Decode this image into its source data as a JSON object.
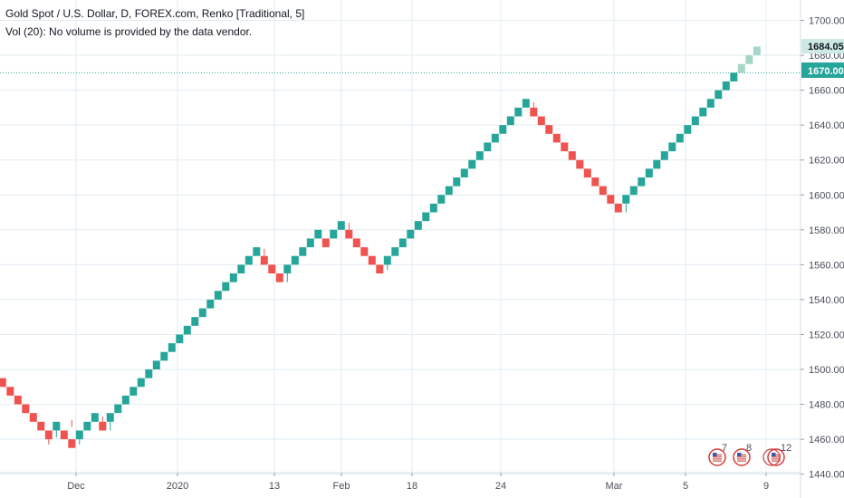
{
  "header": {
    "symbol_line": "Gold Spot / U.S. Dollar, D, FOREX.com, Renko [Traditional, 5]",
    "volume_line": "Vol (20): No volume is provided by the data vendor."
  },
  "colors": {
    "up": "#26a69a",
    "down": "#ef5350",
    "projected": "#a5d6c8",
    "grid": "#e1ecf2",
    "price_line": "#26a69a",
    "last_price_tag": "#26a69a",
    "projected_tag": "#cce9e3"
  },
  "price_tags": {
    "projected": "1684.05",
    "last": "1670.00"
  },
  "event_markers": [
    {
      "icon": "us-flag-earnings-icon",
      "count": "7"
    },
    {
      "icon": "us-flag-earnings-icon",
      "count": "8"
    },
    {
      "icon": "us-flag-earnings-icon",
      "count": "12"
    }
  ],
  "chart_data": {
    "type": "renko",
    "box_size": 5,
    "y_ticks": [
      "1700.00",
      "1680.00",
      "1660.00",
      "1640.00",
      "1620.00",
      "1600.00",
      "1580.00",
      "1560.00",
      "1540.00",
      "1520.00",
      "1500.00",
      "1480.00",
      "1460.00",
      "1440.00"
    ],
    "x_ticks": [
      "Dec",
      "2020",
      "13",
      "Feb",
      "18",
      "24",
      "Mar",
      "5",
      "9"
    ],
    "ylim": [
      1435,
      1710
    ],
    "bricks": [
      {
        "low": 1490,
        "high": 1495,
        "dir": "down"
      },
      {
        "low": 1485,
        "high": 1490,
        "dir": "down"
      },
      {
        "low": 1480,
        "high": 1485,
        "dir": "down"
      },
      {
        "low": 1475,
        "high": 1480,
        "dir": "down"
      },
      {
        "low": 1470,
        "high": 1475,
        "dir": "down"
      },
      {
        "low": 1465,
        "high": 1470,
        "dir": "down"
      },
      {
        "low": 1460,
        "high": 1465,
        "dir": "down"
      },
      {
        "low": 1465,
        "high": 1470,
        "dir": "up"
      },
      {
        "low": 1460,
        "high": 1465,
        "dir": "down"
      },
      {
        "low": 1455,
        "high": 1460,
        "dir": "down"
      },
      {
        "low": 1460,
        "high": 1465,
        "dir": "up"
      },
      {
        "low": 1465,
        "high": 1470,
        "dir": "up"
      },
      {
        "low": 1470,
        "high": 1475,
        "dir": "up"
      },
      {
        "low": 1465,
        "high": 1470,
        "dir": "down"
      },
      {
        "low": 1470,
        "high": 1475,
        "dir": "up"
      },
      {
        "low": 1475,
        "high": 1480,
        "dir": "up"
      },
      {
        "low": 1480,
        "high": 1485,
        "dir": "up"
      },
      {
        "low": 1485,
        "high": 1490,
        "dir": "up"
      },
      {
        "low": 1490,
        "high": 1495,
        "dir": "up"
      },
      {
        "low": 1495,
        "high": 1500,
        "dir": "up"
      },
      {
        "low": 1500,
        "high": 1505,
        "dir": "up"
      },
      {
        "low": 1505,
        "high": 1510,
        "dir": "up"
      },
      {
        "low": 1510,
        "high": 1515,
        "dir": "up"
      },
      {
        "low": 1515,
        "high": 1520,
        "dir": "up"
      },
      {
        "low": 1520,
        "high": 1525,
        "dir": "up"
      },
      {
        "low": 1525,
        "high": 1530,
        "dir": "up"
      },
      {
        "low": 1530,
        "high": 1535,
        "dir": "up"
      },
      {
        "low": 1535,
        "high": 1540,
        "dir": "up"
      },
      {
        "low": 1540,
        "high": 1545,
        "dir": "up"
      },
      {
        "low": 1545,
        "high": 1550,
        "dir": "up"
      },
      {
        "low": 1550,
        "high": 1555,
        "dir": "up"
      },
      {
        "low": 1555,
        "high": 1560,
        "dir": "up"
      },
      {
        "low": 1560,
        "high": 1565,
        "dir": "up"
      },
      {
        "low": 1565,
        "high": 1570,
        "dir": "up"
      },
      {
        "low": 1560,
        "high": 1565,
        "dir": "down"
      },
      {
        "low": 1555,
        "high": 1560,
        "dir": "down"
      },
      {
        "low": 1550,
        "high": 1555,
        "dir": "down"
      },
      {
        "low": 1555,
        "high": 1560,
        "dir": "up"
      },
      {
        "low": 1560,
        "high": 1565,
        "dir": "up"
      },
      {
        "low": 1565,
        "high": 1570,
        "dir": "up"
      },
      {
        "low": 1570,
        "high": 1575,
        "dir": "up"
      },
      {
        "low": 1575,
        "high": 1580,
        "dir": "up"
      },
      {
        "low": 1570,
        "high": 1575,
        "dir": "down"
      },
      {
        "low": 1575,
        "high": 1580,
        "dir": "up"
      },
      {
        "low": 1580,
        "high": 1585,
        "dir": "up"
      },
      {
        "low": 1575,
        "high": 1580,
        "dir": "down"
      },
      {
        "low": 1570,
        "high": 1575,
        "dir": "down"
      },
      {
        "low": 1565,
        "high": 1570,
        "dir": "down"
      },
      {
        "low": 1560,
        "high": 1565,
        "dir": "down"
      },
      {
        "low": 1555,
        "high": 1560,
        "dir": "down"
      },
      {
        "low": 1560,
        "high": 1565,
        "dir": "up"
      },
      {
        "low": 1565,
        "high": 1570,
        "dir": "up"
      },
      {
        "low": 1570,
        "high": 1575,
        "dir": "up"
      },
      {
        "low": 1575,
        "high": 1580,
        "dir": "up"
      },
      {
        "low": 1580,
        "high": 1585,
        "dir": "up"
      },
      {
        "low": 1585,
        "high": 1590,
        "dir": "up"
      },
      {
        "low": 1590,
        "high": 1595,
        "dir": "up"
      },
      {
        "low": 1595,
        "high": 1600,
        "dir": "up"
      },
      {
        "low": 1600,
        "high": 1605,
        "dir": "up"
      },
      {
        "low": 1605,
        "high": 1610,
        "dir": "up"
      },
      {
        "low": 1610,
        "high": 1615,
        "dir": "up"
      },
      {
        "low": 1615,
        "high": 1620,
        "dir": "up"
      },
      {
        "low": 1620,
        "high": 1625,
        "dir": "up"
      },
      {
        "low": 1625,
        "high": 1630,
        "dir": "up"
      },
      {
        "low": 1630,
        "high": 1635,
        "dir": "up"
      },
      {
        "low": 1635,
        "high": 1640,
        "dir": "up"
      },
      {
        "low": 1640,
        "high": 1645,
        "dir": "up"
      },
      {
        "low": 1645,
        "high": 1650,
        "dir": "up"
      },
      {
        "low": 1650,
        "high": 1655,
        "dir": "up"
      },
      {
        "low": 1645,
        "high": 1650,
        "dir": "down"
      },
      {
        "low": 1640,
        "high": 1645,
        "dir": "down"
      },
      {
        "low": 1635,
        "high": 1640,
        "dir": "down"
      },
      {
        "low": 1630,
        "high": 1635,
        "dir": "down"
      },
      {
        "low": 1625,
        "high": 1630,
        "dir": "down"
      },
      {
        "low": 1620,
        "high": 1625,
        "dir": "down"
      },
      {
        "low": 1615,
        "high": 1620,
        "dir": "down"
      },
      {
        "low": 1610,
        "high": 1615,
        "dir": "down"
      },
      {
        "low": 1605,
        "high": 1610,
        "dir": "down"
      },
      {
        "low": 1600,
        "high": 1605,
        "dir": "down"
      },
      {
        "low": 1595,
        "high": 1600,
        "dir": "down"
      },
      {
        "low": 1590,
        "high": 1595,
        "dir": "down"
      },
      {
        "low": 1595,
        "high": 1600,
        "dir": "up"
      },
      {
        "low": 1600,
        "high": 1605,
        "dir": "up"
      },
      {
        "low": 1605,
        "high": 1610,
        "dir": "up"
      },
      {
        "low": 1610,
        "high": 1615,
        "dir": "up"
      },
      {
        "low": 1615,
        "high": 1620,
        "dir": "up"
      },
      {
        "low": 1620,
        "high": 1625,
        "dir": "up"
      },
      {
        "low": 1625,
        "high": 1630,
        "dir": "up"
      },
      {
        "low": 1630,
        "high": 1635,
        "dir": "up"
      },
      {
        "low": 1635,
        "high": 1640,
        "dir": "up"
      },
      {
        "low": 1640,
        "high": 1645,
        "dir": "up"
      },
      {
        "low": 1645,
        "high": 1650,
        "dir": "up"
      },
      {
        "low": 1650,
        "high": 1655,
        "dir": "up"
      },
      {
        "low": 1655,
        "high": 1660,
        "dir": "up"
      },
      {
        "low": 1660,
        "high": 1665,
        "dir": "up"
      },
      {
        "low": 1665,
        "high": 1670,
        "dir": "up"
      },
      {
        "low": 1670,
        "high": 1675,
        "dir": "projected"
      },
      {
        "low": 1675,
        "high": 1680,
        "dir": "projected"
      },
      {
        "low": 1680,
        "high": 1685,
        "dir": "projected"
      }
    ],
    "last_price": 1670.0,
    "projected_price": 1684.05
  }
}
